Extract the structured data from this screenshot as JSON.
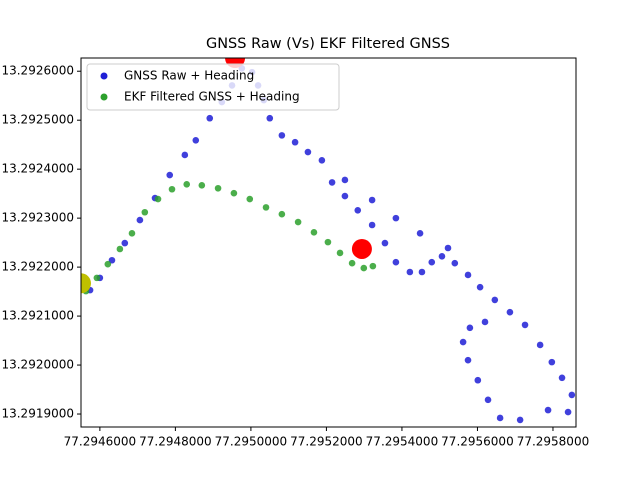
{
  "chart_data": {
    "type": "scatter",
    "title": "GNSS Raw (Vs) EKF Filtered GNSS",
    "xlim": [
      77.29455,
      77.295861
    ],
    "ylim": [
      13.2918735,
      13.292627
    ],
    "xticks": [
      {
        "value": 77.2946,
        "label": "77.2946000"
      },
      {
        "value": 77.2948,
        "label": "77.2948000"
      },
      {
        "value": 77.295,
        "label": "77.2950000"
      },
      {
        "value": 77.2952,
        "label": "77.2952000"
      },
      {
        "value": 77.2954,
        "label": "77.2954000"
      },
      {
        "value": 77.2956,
        "label": "77.2956000"
      },
      {
        "value": 77.2958,
        "label": "77.2958000"
      }
    ],
    "yticks": [
      {
        "value": 13.2919,
        "label": "13.2919000"
      },
      {
        "value": 13.292,
        "label": "13.2920000"
      },
      {
        "value": 13.2921,
        "label": "13.2921000"
      },
      {
        "value": 13.2922,
        "label": "13.2922000"
      },
      {
        "value": 13.2923,
        "label": "13.2923000"
      },
      {
        "value": 13.2924,
        "label": "13.2924000"
      },
      {
        "value": 13.2925,
        "label": "13.2925000"
      },
      {
        "value": 13.2926,
        "label": "13.2926000"
      }
    ],
    "legend": "upper left",
    "series": [
      {
        "name": "GNSS Raw + Heading",
        "color": "#1f1fd6",
        "x": [
          77.294574,
          77.2946,
          77.294632,
          77.294666,
          77.294706,
          77.294746,
          77.294785,
          77.294825,
          77.294854,
          77.294891,
          77.294923,
          77.29495,
          77.294976,
          77.295003,
          77.295019,
          77.295034,
          77.29505,
          77.295082,
          77.295117,
          77.295151,
          77.295188,
          77.295215,
          77.295249,
          77.295283,
          77.295321,
          77.295355,
          77.295384,
          77.295421,
          77.295453,
          77.295479,
          77.295506,
          77.29554,
          77.295575,
          77.295607,
          77.295646,
          77.295686,
          77.295726,
          77.295766,
          77.295797,
          77.295824,
          77.29585,
          77.29584,
          77.295787,
          77.295713,
          77.29566,
          77.295628,
          77.295601,
          77.295575,
          77.295562,
          77.29558,
          77.29562,
          77.295249,
          77.295321,
          77.295384,
          77.295448,
          77.295522
        ],
        "y": [
          13.292153,
          13.292178,
          13.292214,
          13.292249,
          13.292296,
          13.292341,
          13.292388,
          13.292429,
          13.292459,
          13.292504,
          13.292537,
          13.292571,
          13.292606,
          13.292598,
          13.292571,
          13.292541,
          13.292504,
          13.292469,
          13.292455,
          13.292435,
          13.292418,
          13.292373,
          13.292345,
          13.292316,
          13.292286,
          13.292249,
          13.29221,
          13.29219,
          13.29219,
          13.29221,
          13.292222,
          13.292208,
          13.292184,
          13.292159,
          13.292133,
          13.292108,
          13.292082,
          13.292041,
          13.292006,
          13.291974,
          13.291939,
          13.291904,
          13.291908,
          13.291888,
          13.291892,
          13.291929,
          13.291969,
          13.29201,
          13.292047,
          13.292076,
          13.292088,
          13.292378,
          13.292337,
          13.2923,
          13.292269,
          13.292239
        ]
      },
      {
        "name": "EKF Filtered GNSS + Heading",
        "color": "#2ca02c",
        "x": [
          77.294563,
          77.294592,
          77.294621,
          77.294653,
          77.294685,
          77.294719,
          77.294754,
          77.294791,
          77.29483,
          77.29487,
          77.294913,
          77.294955,
          77.294997,
          77.29504,
          77.295082,
          77.295125,
          77.295167,
          77.295204,
          77.295236,
          77.295268,
          77.295299,
          77.295323
        ],
        "y": [
          13.292151,
          13.292178,
          13.292206,
          13.292237,
          13.292269,
          13.292312,
          13.292339,
          13.292359,
          13.292369,
          13.292367,
          13.292361,
          13.292351,
          13.292339,
          13.292322,
          13.292308,
          13.292292,
          13.292271,
          13.292251,
          13.292229,
          13.292208,
          13.292198,
          13.292202
        ]
      }
    ],
    "markers": {
      "x": [
        77.294958,
        77.295294,
        77.29455
      ],
      "y": [
        13.292627,
        13.292237,
        13.292167
      ],
      "colors": [
        "#ff0000",
        "#ff0000",
        "#bfbf00"
      ]
    }
  }
}
